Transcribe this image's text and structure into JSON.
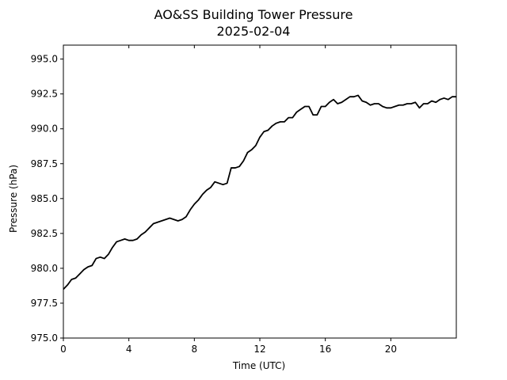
{
  "chart_data": {
    "type": "line",
    "title": "AO&SS Building Tower Pressure",
    "subtitle": "2025-02-04",
    "xlabel": "Time (UTC)",
    "ylabel": "Pressure (hPa)",
    "xlim": [
      0,
      24
    ],
    "ylim": [
      975.0,
      996.0
    ],
    "x_ticks": [
      0,
      4,
      8,
      12,
      16,
      20
    ],
    "x_tick_labels": [
      "0",
      "4",
      "8",
      "12",
      "16",
      "20"
    ],
    "y_ticks": [
      975.0,
      977.5,
      980.0,
      982.5,
      985.0,
      987.5,
      990.0,
      992.5,
      995.0
    ],
    "y_tick_labels": [
      "975.0",
      "977.5",
      "980.0",
      "982.5",
      "985.0",
      "987.5",
      "990.0",
      "992.5",
      "995.0"
    ],
    "grid": false,
    "legend": false,
    "series": [
      {
        "color": "#000000",
        "x": [
          0.0,
          0.25,
          0.5,
          0.75,
          1.0,
          1.25,
          1.5,
          1.75,
          2.0,
          2.25,
          2.5,
          2.75,
          3.0,
          3.25,
          3.5,
          3.75,
          4.0,
          4.25,
          4.5,
          4.75,
          5.0,
          5.25,
          5.5,
          5.75,
          6.0,
          6.25,
          6.5,
          6.75,
          7.0,
          7.25,
          7.5,
          7.75,
          8.0,
          8.25,
          8.5,
          8.75,
          9.0,
          9.25,
          9.5,
          9.75,
          10.0,
          10.25,
          10.5,
          10.75,
          11.0,
          11.25,
          11.5,
          11.75,
          12.0,
          12.25,
          12.5,
          12.75,
          13.0,
          13.25,
          13.5,
          13.75,
          14.0,
          14.25,
          14.5,
          14.75,
          15.0,
          15.25,
          15.5,
          15.75,
          16.0,
          16.25,
          16.5,
          16.75,
          17.0,
          17.25,
          17.5,
          17.75,
          18.0,
          18.25,
          18.5,
          18.75,
          19.0,
          19.25,
          19.5,
          19.75,
          20.0,
          20.25,
          20.5,
          20.75,
          21.0,
          21.25,
          21.5,
          21.75,
          22.0,
          22.25,
          22.5,
          22.75,
          23.0,
          23.25,
          23.5,
          23.75,
          24.0
        ],
        "y": [
          978.5,
          978.8,
          979.2,
          979.3,
          979.6,
          979.9,
          980.1,
          980.2,
          980.7,
          980.8,
          980.7,
          981.0,
          981.5,
          981.9,
          982.0,
          982.1,
          982.0,
          982.0,
          982.1,
          982.4,
          982.6,
          982.9,
          983.2,
          983.3,
          983.4,
          983.5,
          983.6,
          983.5,
          983.4,
          983.5,
          983.7,
          984.2,
          984.6,
          984.9,
          985.3,
          985.6,
          985.8,
          986.2,
          986.1,
          986.0,
          986.1,
          987.2,
          987.2,
          987.3,
          987.7,
          988.3,
          988.5,
          988.8,
          989.4,
          989.8,
          989.9,
          990.2,
          990.4,
          990.5,
          990.5,
          990.8,
          990.8,
          991.2,
          991.4,
          991.6,
          991.6,
          991.0,
          991.0,
          991.6,
          991.6,
          991.9,
          992.1,
          991.8,
          991.9,
          992.1,
          992.3,
          992.3,
          992.4,
          992.0,
          991.9,
          991.7,
          991.8,
          991.8,
          991.6,
          991.5,
          991.5,
          991.6,
          991.7,
          991.7,
          991.8,
          991.8,
          991.9,
          991.5,
          991.8,
          991.8,
          992.0,
          991.9,
          992.1,
          992.2,
          992.1,
          992.3,
          992.3
        ]
      }
    ]
  }
}
